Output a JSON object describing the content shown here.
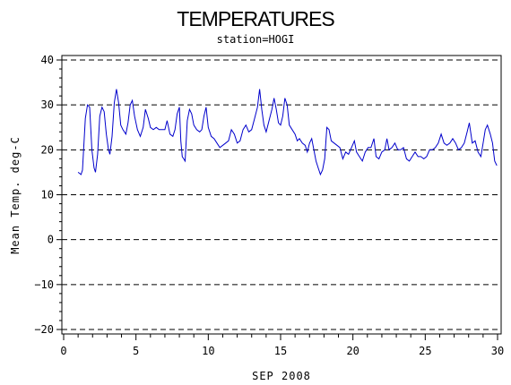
{
  "chart_data": {
    "type": "line",
    "title": "TEMPERATURES",
    "subtitle": "station=HOGI",
    "xlabel": "SEP 2008",
    "ylabel": "Mean Temp. deg-C",
    "xlim": [
      0,
      30
    ],
    "ylim": [
      -20,
      40
    ],
    "x_ticks": [
      0,
      5,
      10,
      15,
      20,
      25,
      30
    ],
    "y_ticks": [
      -20,
      -10,
      0,
      10,
      20,
      30,
      40
    ],
    "grid": "horizontal dashed at major y ticks",
    "line_color": "#0000cc",
    "series": [
      {
        "values": [
          [
            1.0,
            15.0
          ],
          [
            1.2,
            14.5
          ],
          [
            1.3,
            15.5
          ],
          [
            1.5,
            27.0
          ],
          [
            1.65,
            30.0
          ],
          [
            1.8,
            29.5
          ],
          [
            1.95,
            20.0
          ],
          [
            2.1,
            16.0
          ],
          [
            2.2,
            15.0
          ],
          [
            2.35,
            19.0
          ],
          [
            2.5,
            27.5
          ],
          [
            2.65,
            29.5
          ],
          [
            2.8,
            28.5
          ],
          [
            2.95,
            23.5
          ],
          [
            3.1,
            20.0
          ],
          [
            3.2,
            19.0
          ],
          [
            3.35,
            23.0
          ],
          [
            3.5,
            30.5
          ],
          [
            3.65,
            33.5
          ],
          [
            3.8,
            30.5
          ],
          [
            3.95,
            25.5
          ],
          [
            4.1,
            24.5
          ],
          [
            4.3,
            23.5
          ],
          [
            4.45,
            26.0
          ],
          [
            4.6,
            30.0
          ],
          [
            4.75,
            31.0
          ],
          [
            4.9,
            27.5
          ],
          [
            5.1,
            24.5
          ],
          [
            5.3,
            23.0
          ],
          [
            5.5,
            25.0
          ],
          [
            5.65,
            29.0
          ],
          [
            5.85,
            27.0
          ],
          [
            6.0,
            25.0
          ],
          [
            6.2,
            24.5
          ],
          [
            6.4,
            25.0
          ],
          [
            6.6,
            24.5
          ],
          [
            6.8,
            24.5
          ],
          [
            7.0,
            24.5
          ],
          [
            7.15,
            26.5
          ],
          [
            7.35,
            23.5
          ],
          [
            7.55,
            23.0
          ],
          [
            7.7,
            24.5
          ],
          [
            7.85,
            28.0
          ],
          [
            8.0,
            29.5
          ],
          [
            8.1,
            22.0
          ],
          [
            8.2,
            18.5
          ],
          [
            8.3,
            18.0
          ],
          [
            8.4,
            17.5
          ],
          [
            8.55,
            26.5
          ],
          [
            8.7,
            29.0
          ],
          [
            8.85,
            28.0
          ],
          [
            9.0,
            25.5
          ],
          [
            9.2,
            24.5
          ],
          [
            9.4,
            24.0
          ],
          [
            9.55,
            24.5
          ],
          [
            9.7,
            27.5
          ],
          [
            9.85,
            29.5
          ],
          [
            10.0,
            25.0
          ],
          [
            10.2,
            23.0
          ],
          [
            10.4,
            22.5
          ],
          [
            10.6,
            21.5
          ],
          [
            10.8,
            20.5
          ],
          [
            11.0,
            21.0
          ],
          [
            11.2,
            21.5
          ],
          [
            11.4,
            22.0
          ],
          [
            11.6,
            24.5
          ],
          [
            11.8,
            23.5
          ],
          [
            12.0,
            21.5
          ],
          [
            12.2,
            22.0
          ],
          [
            12.4,
            24.5
          ],
          [
            12.6,
            25.5
          ],
          [
            12.8,
            24.0
          ],
          [
            13.0,
            24.5
          ],
          [
            13.2,
            27.0
          ],
          [
            13.4,
            29.5
          ],
          [
            13.55,
            33.5
          ],
          [
            13.7,
            29.0
          ],
          [
            13.85,
            25.5
          ],
          [
            14.0,
            24.0
          ],
          [
            14.2,
            26.5
          ],
          [
            14.4,
            29.0
          ],
          [
            14.55,
            31.5
          ],
          [
            14.7,
            29.0
          ],
          [
            14.85,
            26.0
          ],
          [
            15.0,
            25.5
          ],
          [
            15.15,
            27.5
          ],
          [
            15.3,
            31.5
          ],
          [
            15.45,
            30.0
          ],
          [
            15.6,
            25.5
          ],
          [
            15.8,
            24.5
          ],
          [
            16.0,
            23.5
          ],
          [
            16.15,
            22.0
          ],
          [
            16.3,
            22.5
          ],
          [
            16.5,
            21.5
          ],
          [
            16.7,
            21.0
          ],
          [
            16.85,
            19.5
          ],
          [
            17.0,
            21.5
          ],
          [
            17.15,
            22.5
          ],
          [
            17.3,
            20.0
          ],
          [
            17.45,
            17.5
          ],
          [
            17.6,
            16.0
          ],
          [
            17.75,
            14.5
          ],
          [
            17.9,
            15.5
          ],
          [
            18.05,
            18.0
          ],
          [
            18.2,
            25.0
          ],
          [
            18.35,
            24.5
          ],
          [
            18.5,
            22.0
          ],
          [
            18.7,
            21.5
          ],
          [
            18.9,
            21.0
          ],
          [
            19.1,
            20.5
          ],
          [
            19.3,
            18.0
          ],
          [
            19.5,
            19.5
          ],
          [
            19.7,
            19.0
          ],
          [
            19.9,
            20.5
          ],
          [
            20.1,
            22.0
          ],
          [
            20.25,
            19.5
          ],
          [
            20.45,
            18.5
          ],
          [
            20.65,
            17.5
          ],
          [
            20.85,
            19.5
          ],
          [
            21.05,
            20.5
          ],
          [
            21.25,
            20.5
          ],
          [
            21.45,
            22.5
          ],
          [
            21.6,
            18.5
          ],
          [
            21.8,
            18.0
          ],
          [
            22.0,
            19.5
          ],
          [
            22.2,
            20.0
          ],
          [
            22.35,
            22.5
          ],
          [
            22.5,
            20.0
          ],
          [
            22.7,
            20.5
          ],
          [
            22.9,
            21.5
          ],
          [
            23.1,
            20.0
          ],
          [
            23.3,
            20.0
          ],
          [
            23.5,
            20.5
          ],
          [
            23.7,
            18.0
          ],
          [
            23.9,
            17.5
          ],
          [
            24.1,
            18.5
          ],
          [
            24.3,
            19.5
          ],
          [
            24.5,
            18.5
          ],
          [
            24.7,
            18.5
          ],
          [
            24.9,
            18.0
          ],
          [
            25.1,
            18.5
          ],
          [
            25.3,
            20.0
          ],
          [
            25.5,
            20.0
          ],
          [
            25.7,
            20.5
          ],
          [
            25.9,
            21.5
          ],
          [
            26.1,
            23.5
          ],
          [
            26.3,
            21.5
          ],
          [
            26.5,
            21.0
          ],
          [
            26.7,
            21.5
          ],
          [
            26.9,
            22.5
          ],
          [
            27.1,
            21.5
          ],
          [
            27.3,
            20.0
          ],
          [
            27.5,
            20.5
          ],
          [
            27.7,
            21.5
          ],
          [
            27.9,
            24.0
          ],
          [
            28.05,
            26.0
          ],
          [
            28.25,
            21.5
          ],
          [
            28.45,
            22.0
          ],
          [
            28.65,
            19.5
          ],
          [
            28.85,
            18.5
          ],
          [
            29.0,
            21.5
          ],
          [
            29.15,
            24.5
          ],
          [
            29.3,
            25.5
          ],
          [
            29.5,
            23.5
          ],
          [
            29.65,
            21.5
          ],
          [
            29.8,
            17.5
          ],
          [
            29.95,
            16.5
          ]
        ]
      }
    ]
  }
}
